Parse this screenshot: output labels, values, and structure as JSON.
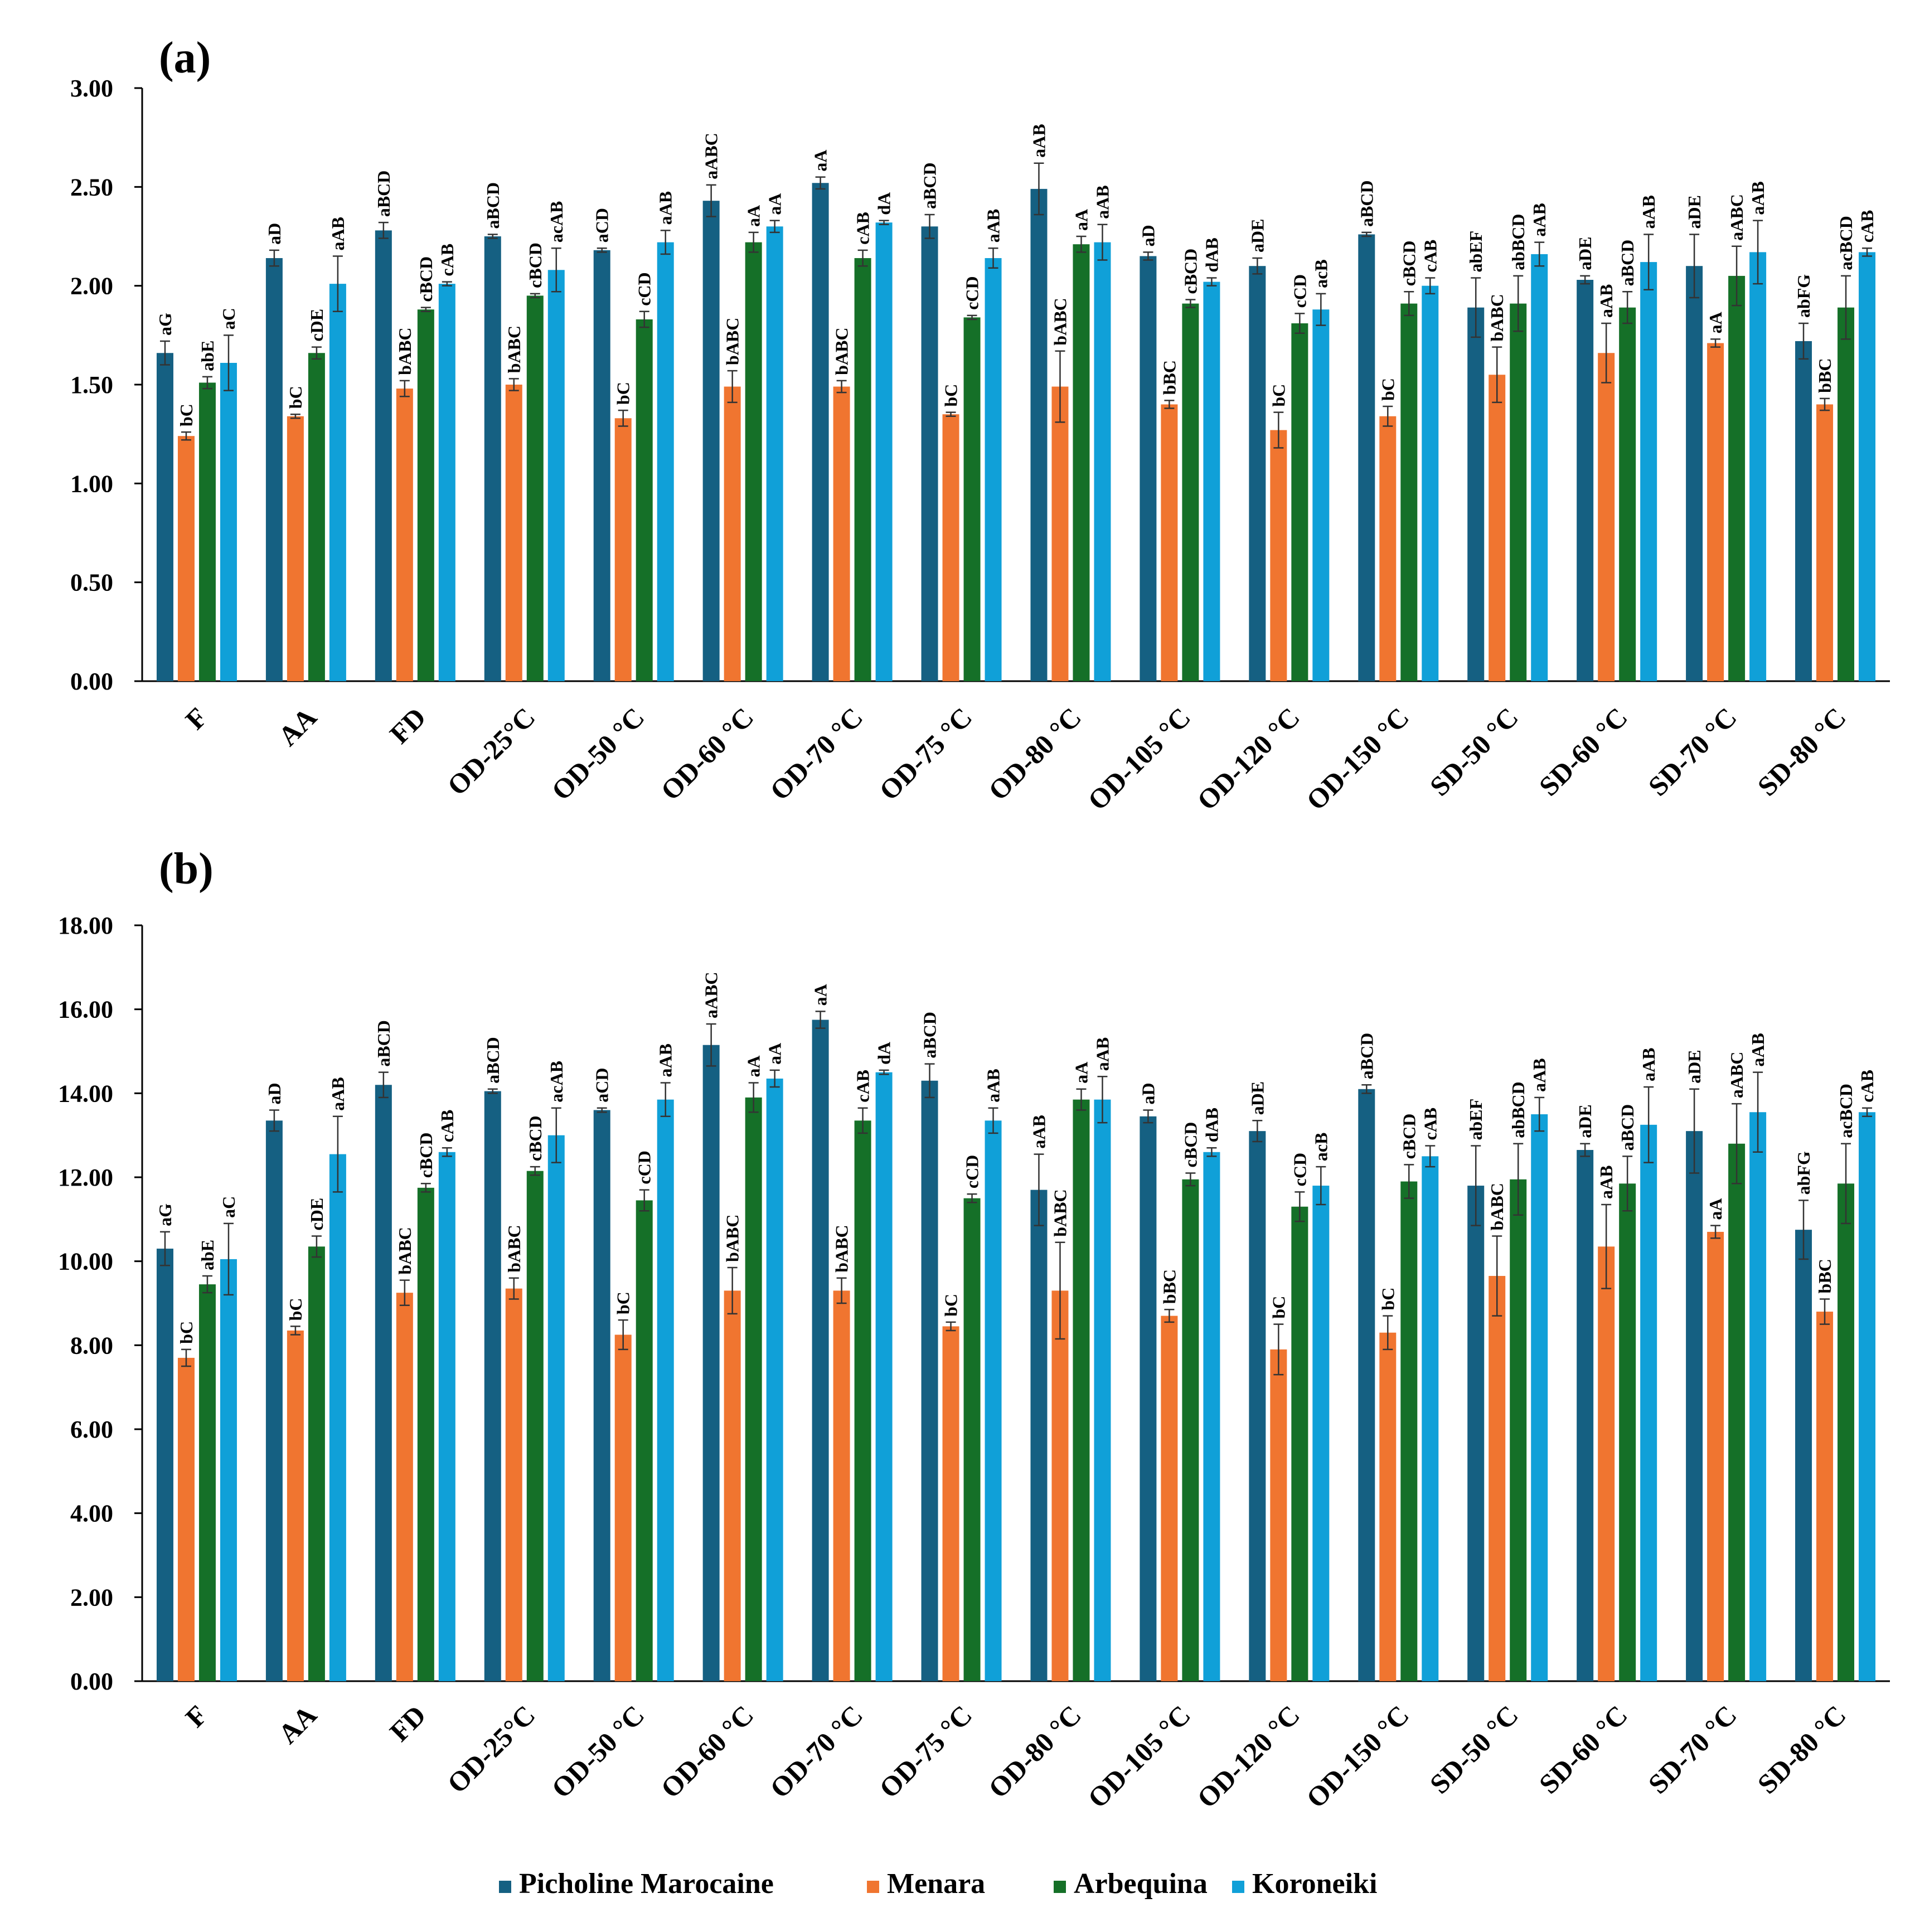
{
  "legend": [
    {
      "name": "Picholine Marocaine",
      "color": "#156082"
    },
    {
      "name": "Menara",
      "color": "#F07530"
    },
    {
      "name": "Arbequina",
      "color": "#157028"
    },
    {
      "name": "Koroneiki",
      "color": "#10A0D8"
    }
  ],
  "chart_data": [
    {
      "type": "bar",
      "title": "(a)",
      "xlabel": "",
      "ylabel": "",
      "ylim": [
        0,
        3
      ],
      "yticks": [
        "0.00",
        "0.50",
        "1.00",
        "1.50",
        "2.00",
        "2.50",
        "3.00"
      ],
      "categories": [
        "F",
        "AA",
        "FD",
        "OD-25°C",
        "OD-50 °C",
        "OD-60 °C",
        "OD-70 °C",
        "OD-75 °C",
        "OD-80 °C",
        "OD-105 °C",
        "OD-120 °C",
        "OD-150 °C",
        "SD-50 °C",
        "SD-60 °C",
        "SD-70 °C",
        "SD-80 °C"
      ],
      "series": [
        {
          "name": "Picholine Marocaine",
          "values": [
            1.66,
            2.14,
            2.28,
            2.25,
            2.18,
            2.43,
            2.52,
            2.3,
            2.49,
            2.15,
            2.1,
            2.26,
            1.89,
            2.03,
            2.1,
            1.72
          ],
          "errors": [
            0.06,
            0.04,
            0.04,
            0.01,
            0.01,
            0.08,
            0.03,
            0.06,
            0.13,
            0.02,
            0.04,
            0.01,
            0.15,
            0.02,
            0.16,
            0.09
          ],
          "labels": [
            "aG",
            "aD",
            "aBCD",
            "aBCD",
            "aCD",
            "aABC",
            "aA",
            "aBCD",
            "aAB",
            "aD",
            "aDE",
            "aBCD",
            "abEF",
            "aDE",
            "aDE",
            "abFG"
          ]
        },
        {
          "name": "Menara",
          "values": [
            1.24,
            1.34,
            1.48,
            1.5,
            1.33,
            1.49,
            1.49,
            1.35,
            1.49,
            1.4,
            1.27,
            1.34,
            1.55,
            1.66,
            1.71,
            1.4
          ],
          "errors": [
            0.02,
            0.01,
            0.04,
            0.03,
            0.04,
            0.08,
            0.03,
            0.01,
            0.18,
            0.02,
            0.09,
            0.05,
            0.14,
            0.15,
            0.02,
            0.03
          ],
          "labels": [
            "bC",
            "bC",
            "bABC",
            "bABC",
            "bC",
            "bABC",
            "bABC",
            "bC",
            "bABC",
            "bBC",
            "bC",
            "bC",
            "bABC",
            "aAB",
            "aA",
            "bBC"
          ]
        },
        {
          "name": "Arbequina",
          "values": [
            1.51,
            1.66,
            1.88,
            1.95,
            1.83,
            2.22,
            2.14,
            1.84,
            2.21,
            1.91,
            1.81,
            1.91,
            1.91,
            1.89,
            2.05,
            1.89
          ],
          "errors": [
            0.03,
            0.03,
            0.01,
            0.01,
            0.04,
            0.05,
            0.04,
            0.01,
            0.04,
            0.02,
            0.05,
            0.06,
            0.14,
            0.08,
            0.15,
            0.16
          ],
          "labels": [
            "abE",
            "cDE",
            "cBCD",
            "cBCD",
            "cCD",
            "aA",
            "cAB",
            "cCD",
            "aA",
            "cBCD",
            "cCD",
            "cBCD",
            "abBCD",
            "aBCD",
            "aABC",
            "acBCD"
          ]
        },
        {
          "name": "Koroneiki",
          "values": [
            1.61,
            2.01,
            2.01,
            2.08,
            2.22,
            2.3,
            2.32,
            2.14,
            2.22,
            2.02,
            1.88,
            2.0,
            2.16,
            2.12,
            2.17,
            2.17
          ],
          "errors": [
            0.14,
            0.14,
            0.01,
            0.11,
            0.06,
            0.03,
            0.01,
            0.05,
            0.09,
            0.02,
            0.08,
            0.04,
            0.06,
            0.14,
            0.16,
            0.02
          ],
          "labels": [
            "aC",
            "aAB",
            "cAB",
            "acAB",
            "aAB",
            "aA",
            "dA",
            "aAB",
            "aAB",
            "dAB",
            "acB",
            "cAB",
            "aAB",
            "aAB",
            "aAB",
            "cAB"
          ]
        }
      ]
    },
    {
      "type": "bar",
      "title": "(b)",
      "xlabel": "",
      "ylabel": "",
      "ylim": [
        0,
        18
      ],
      "yticks": [
        "0.00",
        "2.00",
        "4.00",
        "6.00",
        "8.00",
        "10.00",
        "12.00",
        "14.00",
        "16.00",
        "18.00"
      ],
      "categories": [
        "F",
        "AA",
        "FD",
        "OD-25°C",
        "OD-50 °C",
        "OD-60 °C",
        "OD-70 °C",
        "OD-75 °C",
        "OD-80 °C",
        "OD-105 °C",
        "OD-120 °C",
        "OD-150 °C",
        "SD-50 °C",
        "SD-60 °C",
        "SD-70 °C",
        "SD-80 °C"
      ],
      "series": [
        {
          "name": "Picholine Marocaine",
          "values": [
            10.3,
            13.35,
            14.2,
            14.05,
            13.6,
            15.15,
            15.75,
            14.3,
            11.7,
            13.45,
            13.1,
            14.1,
            11.8,
            12.65,
            13.1,
            10.75
          ],
          "errors": [
            0.4,
            0.25,
            0.3,
            0.05,
            0.05,
            0.5,
            0.2,
            0.4,
            0.85,
            0.15,
            0.25,
            0.1,
            0.95,
            0.15,
            1.0,
            0.7
          ],
          "labels": [
            "aG",
            "aD",
            "aBCD",
            "aBCD",
            "aCD",
            "aABC",
            "aA",
            "aBCD",
            "aAB",
            "aD",
            "aDE",
            "aBCD",
            "abEF",
            "aDE",
            "aDE",
            "abFG"
          ]
        },
        {
          "name": "Menara",
          "values": [
            7.7,
            8.35,
            9.25,
            9.35,
            8.25,
            9.3,
            9.3,
            8.45,
            9.3,
            8.7,
            7.9,
            8.3,
            9.65,
            10.35,
            10.7,
            8.8
          ],
          "errors": [
            0.2,
            0.1,
            0.3,
            0.25,
            0.35,
            0.55,
            0.3,
            0.1,
            1.15,
            0.15,
            0.6,
            0.4,
            0.95,
            1.0,
            0.15,
            0.3
          ],
          "labels": [
            "bC",
            "bC",
            "bABC",
            "bABC",
            "bC",
            "bABC",
            "bABC",
            "bC",
            "bABC",
            "bBC",
            "bC",
            "bC",
            "bABC",
            "aAB",
            "aA",
            "bBC"
          ]
        },
        {
          "name": "Arbequina",
          "values": [
            9.45,
            10.35,
            11.75,
            12.15,
            11.45,
            13.9,
            13.35,
            11.5,
            13.85,
            11.95,
            11.3,
            11.9,
            11.95,
            11.85,
            12.8,
            11.85
          ],
          "errors": [
            0.2,
            0.25,
            0.1,
            0.1,
            0.25,
            0.35,
            0.3,
            0.1,
            0.25,
            0.15,
            0.35,
            0.4,
            0.85,
            0.65,
            0.95,
            0.95
          ],
          "labels": [
            "abE",
            "cDE",
            "cBCD",
            "cBCD",
            "cCD",
            "aA",
            "cAB",
            "cCD",
            "aA",
            "cBCD",
            "cCD",
            "cBCD",
            "abBCD",
            "aBCD",
            "aABC",
            "acBCD"
          ]
        },
        {
          "name": "Koroneiki",
          "values": [
            10.05,
            12.55,
            12.6,
            13.0,
            13.85,
            14.35,
            14.5,
            13.35,
            13.85,
            12.6,
            11.8,
            12.5,
            13.5,
            13.25,
            13.55,
            13.55
          ],
          "errors": [
            0.85,
            0.9,
            0.1,
            0.65,
            0.4,
            0.2,
            0.05,
            0.3,
            0.55,
            0.1,
            0.45,
            0.25,
            0.4,
            0.9,
            0.95,
            0.1
          ],
          "labels": [
            "aC",
            "aAB",
            "cAB",
            "acAB",
            "aAB",
            "aA",
            "dA",
            "aAB",
            "aAB",
            "dAB",
            "acB",
            "cAB",
            "aAB",
            "aAB",
            "aAB",
            "cAB"
          ]
        }
      ]
    }
  ]
}
